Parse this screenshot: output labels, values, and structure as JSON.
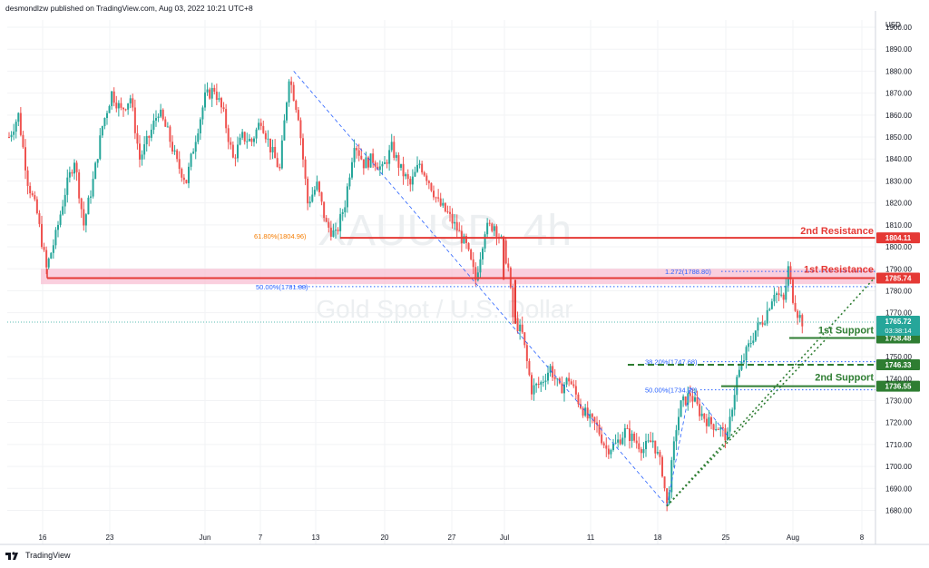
{
  "header": {
    "publish_info": "desmondlzw published on TradingView.com, Aug 03, 2022 10:21 UTC+8"
  },
  "footer": {
    "brand": "TradingView"
  },
  "colors": {
    "bull": "#26a69a",
    "bear": "#ef5350",
    "resistance": "#e53935",
    "support": "#2e7d32",
    "fib_blue": "#2962ff",
    "fib_orange": "#f57c00",
    "last_price_bg": "#26a69a"
  },
  "chart_data": {
    "type": "candlestick",
    "symbol_watermark": "XAUUSD, 4h",
    "description_watermark": "Gold Spot / U.S. Dollar",
    "currency_label": "USD",
    "y_axis": {
      "range": [
        1675,
        1910
      ],
      "ticks": [
        "1900.00",
        "1890.00",
        "1880.00",
        "1870.00",
        "1860.00",
        "1850.00",
        "1840.00",
        "1830.00",
        "1820.00",
        "1810.00",
        "1800.00",
        "1790.00",
        "1780.00",
        "1770.00",
        "1750.00",
        "1740.00",
        "1730.00",
        "1720.00",
        "1710.00",
        "1700.00",
        "1690.00",
        "1680.00"
      ]
    },
    "x_axis": {
      "ticks": [
        "16",
        "23",
        "Jun",
        "7",
        "13",
        "20",
        "27",
        "Jul",
        "11",
        "18",
        "25",
        "Aug",
        "8"
      ]
    },
    "price_path": [
      [
        0,
        1850
      ],
      [
        4,
        1860
      ],
      [
        8,
        1830
      ],
      [
        12,
        1815
      ],
      [
        16,
        1790
      ],
      [
        20,
        1805
      ],
      [
        24,
        1825
      ],
      [
        28,
        1840
      ],
      [
        32,
        1810
      ],
      [
        36,
        1830
      ],
      [
        40,
        1855
      ],
      [
        44,
        1870
      ],
      [
        48,
        1862
      ],
      [
        52,
        1868
      ],
      [
        56,
        1840
      ],
      [
        60,
        1850
      ],
      [
        64,
        1862
      ],
      [
        68,
        1852
      ],
      [
        72,
        1838
      ],
      [
        76,
        1830
      ],
      [
        80,
        1850
      ],
      [
        84,
        1868
      ],
      [
        88,
        1872
      ],
      [
        92,
        1860
      ],
      [
        96,
        1840
      ],
      [
        100,
        1850
      ],
      [
        104,
        1848
      ],
      [
        108,
        1858
      ],
      [
        112,
        1845
      ],
      [
        116,
        1835
      ],
      [
        120,
        1878
      ],
      [
        124,
        1860
      ],
      [
        128,
        1820
      ],
      [
        132,
        1828
      ],
      [
        136,
        1810
      ],
      [
        140,
        1805
      ],
      [
        144,
        1820
      ],
      [
        148,
        1848
      ],
      [
        152,
        1838
      ],
      [
        156,
        1840
      ],
      [
        160,
        1835
      ],
      [
        164,
        1845
      ],
      [
        168,
        1835
      ],
      [
        172,
        1828
      ],
      [
        176,
        1838
      ],
      [
        180,
        1830
      ],
      [
        184,
        1820
      ],
      [
        188,
        1815
      ],
      [
        192,
        1808
      ],
      [
        196,
        1800
      ],
      [
        200,
        1785
      ],
      [
        204,
        1808
      ],
      [
        208,
        1810
      ],
      [
        212,
        1800
      ],
      [
        214,
        1790
      ],
      [
        216,
        1768
      ],
      [
        220,
        1760
      ],
      [
        224,
        1735
      ],
      [
        228,
        1738
      ],
      [
        232,
        1745
      ],
      [
        236,
        1735
      ],
      [
        240,
        1740
      ],
      [
        244,
        1730
      ],
      [
        248,
        1722
      ],
      [
        252,
        1718
      ],
      [
        256,
        1708
      ],
      [
        260,
        1710
      ],
      [
        264,
        1716
      ],
      [
        268,
        1712
      ],
      [
        272,
        1708
      ],
      [
        276,
        1712
      ],
      [
        280,
        1698
      ],
      [
        282,
        1682
      ],
      [
        284,
        1700
      ],
      [
        286,
        1718
      ],
      [
        288,
        1728
      ],
      [
        292,
        1733
      ],
      [
        296,
        1725
      ],
      [
        300,
        1720
      ],
      [
        304,
        1718
      ],
      [
        308,
        1713
      ],
      [
        310,
        1728
      ],
      [
        312,
        1740
      ],
      [
        316,
        1752
      ],
      [
        320,
        1762
      ],
      [
        324,
        1768
      ],
      [
        328,
        1780
      ],
      [
        332,
        1775
      ],
      [
        334,
        1790
      ],
      [
        336,
        1777
      ],
      [
        338,
        1770
      ],
      [
        340,
        1766
      ]
    ],
    "levels": [
      {
        "label": "2nd Resistance",
        "price_tag": "1804.11",
        "value": 1804.11,
        "role": "resistance"
      },
      {
        "label": "1st Resistance",
        "price_tag": "1785.74",
        "value": 1785.74,
        "role": "resistance"
      },
      {
        "label": "1st Support",
        "price_tag": "1758.48",
        "value": 1758.48,
        "role": "support"
      },
      {
        "label": "",
        "price_tag": "1746.33",
        "value": 1746.33,
        "role": "support"
      },
      {
        "label": "2nd Support",
        "price_tag": "1736.55",
        "value": 1736.55,
        "role": "support"
      }
    ],
    "fib_labels": [
      {
        "text": "61.80%(1804.96)",
        "value": 1804.96,
        "color": "orange"
      },
      {
        "text": "50.00%(1781.88)",
        "value": 1781.88,
        "color": "blue"
      },
      {
        "text": "1.272(1788.80)",
        "value": 1788.8,
        "color": "blue"
      },
      {
        "text": "38.20%(1747.68)",
        "value": 1747.68,
        "color": "blue"
      },
      {
        "text": "50.00%(1734.92)",
        "value": 1734.92,
        "color": "blue"
      }
    ],
    "last_price": {
      "value": "1765.72",
      "countdown": "03:38:14",
      "numeric": 1765.72
    }
  }
}
